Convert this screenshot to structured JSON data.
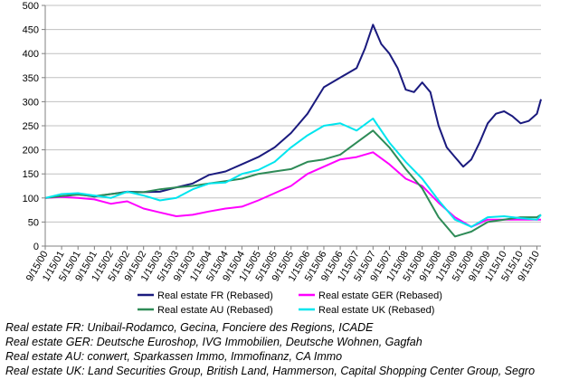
{
  "chart_data": {
    "type": "line",
    "title": "",
    "xlabel": "",
    "ylabel": "",
    "ylim": [
      0,
      500
    ],
    "yticks": [
      "0",
      "50",
      "100",
      "150",
      "200",
      "250",
      "300",
      "350",
      "400",
      "450",
      "500"
    ],
    "xticks": [
      "9/15/00",
      "1/15/01",
      "5/15/01",
      "9/15/01",
      "1/15/02",
      "5/15/02",
      "9/15/02",
      "1/15/03",
      "5/15/03",
      "9/15/03",
      "1/15/04",
      "5/15/04",
      "9/15/04",
      "1/15/05",
      "5/15/05",
      "9/15/05",
      "1/15/06",
      "5/15/06",
      "9/15/06",
      "1/15/07",
      "5/15/07",
      "9/15/07",
      "1/15/08",
      "5/15/08",
      "9/15/08",
      "1/15/09",
      "5/15/09",
      "9/15/09",
      "1/15/10",
      "5/15/10",
      "9/15/10"
    ],
    "grid": true,
    "legend_position": "bottom",
    "series": [
      {
        "name": "Real estate FR (Rebased)",
        "color": "#1a1a7e",
        "x": [
          "9/15/00",
          "1/15/01",
          "5/15/01",
          "9/15/01",
          "1/15/02",
          "5/15/02",
          "9/15/02",
          "1/15/03",
          "5/15/03",
          "9/15/03",
          "1/15/04",
          "5/15/04",
          "9/15/04",
          "1/15/05",
          "5/15/05",
          "9/15/05",
          "1/15/06",
          "5/15/06",
          "9/15/06",
          "1/15/07",
          "3/15/07",
          "5/15/07",
          "7/15/07",
          "9/15/07",
          "11/15/07",
          "1/15/08",
          "3/15/08",
          "5/15/08",
          "7/15/08",
          "9/15/08",
          "11/15/08",
          "1/15/09",
          "3/15/09",
          "5/15/09",
          "7/15/09",
          "9/15/09",
          "11/15/09",
          "1/15/10",
          "3/15/10",
          "5/15/10",
          "7/15/10",
          "9/15/10",
          "10/15/10"
        ],
        "values": [
          100,
          103,
          108,
          103,
          108,
          113,
          112,
          113,
          122,
          130,
          148,
          155,
          170,
          185,
          205,
          235,
          275,
          330,
          350,
          370,
          410,
          460,
          420,
          400,
          370,
          325,
          320,
          340,
          320,
          250,
          205,
          185,
          165,
          180,
          215,
          255,
          275,
          280,
          270,
          255,
          260,
          275,
          305
        ]
      },
      {
        "name": "Real estate GER (Rebased)",
        "color": "#ff00ff",
        "x": [
          "9/15/00",
          "1/15/01",
          "5/15/01",
          "9/15/01",
          "1/15/02",
          "5/15/02",
          "9/15/02",
          "1/15/03",
          "5/15/03",
          "9/15/03",
          "1/15/04",
          "5/15/04",
          "9/15/04",
          "1/15/05",
          "5/15/05",
          "9/15/05",
          "1/15/06",
          "5/15/06",
          "9/15/06",
          "1/15/07",
          "5/15/07",
          "9/15/07",
          "1/15/08",
          "5/15/08",
          "9/15/08",
          "1/15/09",
          "5/15/09",
          "9/15/09",
          "1/15/10",
          "5/15/10",
          "9/15/10",
          "10/15/10"
        ],
        "values": [
          100,
          102,
          100,
          97,
          88,
          93,
          78,
          70,
          62,
          65,
          72,
          78,
          82,
          95,
          110,
          125,
          150,
          165,
          180,
          185,
          195,
          170,
          140,
          125,
          90,
          60,
          40,
          55,
          55,
          55,
          55,
          55
        ]
      },
      {
        "name": "Real estate AU (Rebased)",
        "color": "#2e8b57",
        "x": [
          "9/15/00",
          "1/15/01",
          "5/15/01",
          "9/15/01",
          "1/15/02",
          "5/15/02",
          "9/15/02",
          "1/15/03",
          "5/15/03",
          "9/15/03",
          "1/15/04",
          "5/15/04",
          "9/15/04",
          "1/15/05",
          "5/15/05",
          "9/15/05",
          "1/15/06",
          "5/15/06",
          "9/15/06",
          "1/15/07",
          "5/15/07",
          "9/15/07",
          "1/15/08",
          "5/15/08",
          "9/15/08",
          "1/15/09",
          "5/15/09",
          "9/15/09",
          "1/15/10",
          "5/15/10",
          "9/15/10",
          "10/15/10"
        ],
        "values": [
          100,
          104,
          107,
          104,
          108,
          112,
          112,
          118,
          122,
          125,
          130,
          135,
          140,
          150,
          155,
          160,
          175,
          180,
          190,
          215,
          240,
          205,
          160,
          120,
          60,
          20,
          30,
          50,
          55,
          60,
          60,
          65
        ]
      },
      {
        "name": "Real estate UK (Rebased)",
        "color": "#00e5ee",
        "x": [
          "9/15/00",
          "1/15/01",
          "5/15/01",
          "9/15/01",
          "1/15/02",
          "5/15/02",
          "9/15/02",
          "1/15/03",
          "5/15/03",
          "9/15/03",
          "1/15/04",
          "5/15/04",
          "9/15/04",
          "1/15/05",
          "5/15/05",
          "9/15/05",
          "1/15/06",
          "5/15/06",
          "9/15/06",
          "1/15/07",
          "5/15/07",
          "9/15/07",
          "1/15/08",
          "5/15/08",
          "9/15/08",
          "1/15/09",
          "5/15/09",
          "9/15/09",
          "1/15/10",
          "5/15/10",
          "9/15/10",
          "10/15/10"
        ],
        "values": [
          100,
          108,
          110,
          105,
          100,
          113,
          105,
          95,
          100,
          118,
          130,
          132,
          150,
          158,
          175,
          205,
          230,
          250,
          255,
          240,
          265,
          215,
          175,
          140,
          95,
          55,
          40,
          60,
          62,
          58,
          55,
          65
        ]
      }
    ]
  },
  "notes": [
    "Real estate FR: Unibail-Rodamco, Gecina, Fonciere des Regions, ICADE",
    "Real estate GER: Deutsche Euroshop, IVG Immobilien, Deutsche Wohnen, Gagfah",
    "Real estate AU: conwert, Sparkassen Immo, Immofinanz, CA Immo",
    "Real estate UK: Land Securities Group, British Land, Hammerson, Capital Shopping Center Group, Segro"
  ]
}
